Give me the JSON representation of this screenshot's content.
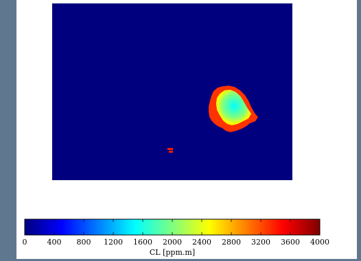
{
  "chart_data": {
    "type": "heatmap",
    "title": "",
    "colorbar": {
      "label": "CL [ppm.m]",
      "range": [
        0,
        4000
      ],
      "ticks": [
        0,
        400,
        800,
        1200,
        1600,
        2000,
        2400,
        2800,
        3200,
        3600,
        4000
      ],
      "colormap": "jet",
      "colors": [
        "#00007f",
        "#0000ff",
        "#007fff",
        "#00ffff",
        "#7fff7f",
        "#ffff00",
        "#ff7f00",
        "#ff0000",
        "#7f0000"
      ]
    },
    "field": {
      "background_value": 0,
      "plumes": [
        {
          "name": "main plume",
          "peak_value": 1500,
          "edge_value": 3300
        },
        {
          "name": "small patch",
          "peak_value": 3400,
          "edge_value": 3400
        }
      ]
    },
    "axes_visible": false
  }
}
